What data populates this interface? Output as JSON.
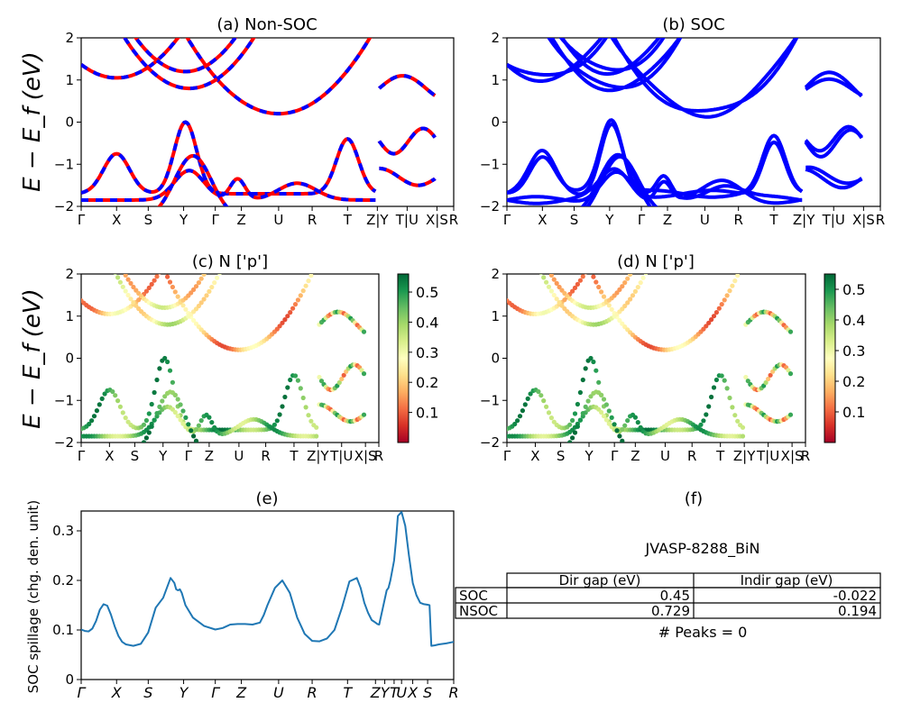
{
  "figure": {
    "material": "JVASP-8288_BiN",
    "kpath_labels": [
      "Γ",
      "X",
      "S",
      "Y",
      "Γ",
      "Z",
      "U",
      "R",
      "T",
      "Z|Y",
      "T|U",
      "X|S",
      "R"
    ],
    "kpath_labels_italic": [
      "Γ",
      "X",
      "S",
      "Y",
      "Γ",
      "Z",
      "U",
      "R",
      "T",
      "Z",
      "Y",
      "T",
      "U",
      "X",
      "S",
      "R"
    ],
    "band_ylabel": "E − E_f (eV)"
  },
  "chart_data": [
    {
      "id": "a",
      "type": "line",
      "title": "(a) Non-SOC",
      "ylabel": "E − E_f (eV)",
      "ylim": [
        -2,
        2
      ],
      "yticks": [
        -2,
        -1,
        0,
        1,
        2
      ],
      "x_ticks": [
        "Γ",
        "X",
        "S",
        "Y",
        "Γ",
        "Z",
        "U",
        "R",
        "T",
        "Z|Y",
        "T|U",
        "X|S",
        "R"
      ],
      "series_colors": [
        "#ff0000",
        "#0000ff"
      ],
      "legend": "none",
      "notes": "red solid and blue dashed bands overlap"
    },
    {
      "id": "b",
      "type": "line",
      "title": "(b) SOC",
      "ylim": [
        -2,
        2
      ],
      "yticks": [
        -2,
        -1,
        0,
        1,
        2
      ],
      "x_ticks": [
        "Γ",
        "X",
        "S",
        "Y",
        "Γ",
        "Z",
        "U",
        "R",
        "T",
        "Z|Y",
        "T|U",
        "X|S",
        "R"
      ],
      "series_colors": [
        "#0000ff"
      ]
    },
    {
      "id": "c",
      "type": "scatter",
      "title": "(c)  N ['p']",
      "ylabel": "E − E_f (eV)",
      "ylim": [
        -2,
        2
      ],
      "yticks": [
        -2,
        -1,
        0,
        1,
        2
      ],
      "x_ticks": [
        "Γ",
        "X",
        "S",
        "Y",
        "Γ",
        "Z",
        "U",
        "R",
        "T",
        "Z|Y",
        "T|U",
        "X|S",
        "R"
      ],
      "colorbar": {
        "ticks": [
          0.1,
          0.2,
          0.3,
          0.4,
          0.5
        ],
        "range": [
          0.0,
          0.56
        ],
        "cmap": "RdYlGn"
      }
    },
    {
      "id": "d",
      "type": "scatter",
      "title": "(d) N ['p']",
      "ylim": [
        -2,
        2
      ],
      "yticks": [
        -2,
        -1,
        0,
        1,
        2
      ],
      "x_ticks": [
        "Γ",
        "X",
        "S",
        "Y",
        "Γ",
        "Z",
        "U",
        "R",
        "T",
        "Z|Y",
        "T|U",
        "X|S",
        "R"
      ],
      "colorbar": {
        "ticks": [
          0.1,
          0.2,
          0.3,
          0.4,
          0.5
        ],
        "range": [
          0.0,
          0.55
        ],
        "cmap": "RdYlGn"
      }
    },
    {
      "id": "e",
      "type": "line",
      "title": "(e)",
      "ylabel": "SOC spillage (chg. den. unit)",
      "ylim": [
        0.0,
        0.34
      ],
      "yticks": [
        0.0,
        0.1,
        0.2,
        0.3
      ],
      "x_ticks": [
        "Γ",
        "X",
        "S",
        "Y",
        "Γ",
        "Z",
        "U",
        "R",
        "T",
        "Z",
        "Y",
        "T",
        "U",
        "X",
        "S",
        "R"
      ],
      "color": "#1f77b4",
      "x": [
        0,
        0.01,
        0.02,
        0.03,
        0.04,
        0.05,
        0.06,
        0.07,
        0.08,
        0.09,
        0.1,
        0.11,
        0.12,
        0.14,
        0.16,
        0.18,
        0.2,
        0.22,
        0.24,
        0.25,
        0.255,
        0.26,
        0.265,
        0.27,
        0.28,
        0.3,
        0.33,
        0.36,
        0.38,
        0.4,
        0.42,
        0.44,
        0.46,
        0.48,
        0.49,
        0.5,
        0.52,
        0.54,
        0.56,
        0.58,
        0.6,
        0.62,
        0.64,
        0.66,
        0.68,
        0.7,
        0.72,
        0.74,
        0.75,
        0.76,
        0.77,
        0.78,
        0.79,
        0.795,
        0.8,
        0.82,
        0.825,
        0.83,
        0.84,
        0.845,
        0.85,
        0.86,
        0.87,
        0.88,
        0.89,
        0.9,
        0.91,
        0.92,
        0.93,
        0.935,
        0.94,
        0.95,
        0.96,
        0.98,
        1.0
      ],
      "values": [
        0.101,
        0.098,
        0.097,
        0.103,
        0.118,
        0.141,
        0.152,
        0.149,
        0.131,
        0.107,
        0.088,
        0.076,
        0.071,
        0.068,
        0.072,
        0.095,
        0.145,
        0.165,
        0.205,
        0.195,
        0.182,
        0.18,
        0.182,
        0.175,
        0.15,
        0.125,
        0.108,
        0.101,
        0.104,
        0.111,
        0.112,
        0.112,
        0.111,
        0.115,
        0.13,
        0.15,
        0.185,
        0.2,
        0.175,
        0.125,
        0.092,
        0.078,
        0.077,
        0.083,
        0.1,
        0.145,
        0.198,
        0.205,
        0.185,
        0.155,
        0.135,
        0.12,
        0.115,
        0.112,
        0.111,
        0.18,
        0.185,
        0.2,
        0.24,
        0.28,
        0.33,
        0.338,
        0.31,
        0.25,
        0.195,
        0.17,
        0.155,
        0.152,
        0.151,
        0.15,
        0.068,
        0.069,
        0.071,
        0.073,
        0.076
      ]
    },
    {
      "id": "f",
      "type": "table",
      "title": "(f)",
      "caption": "JVASP-8288_BiN",
      "columns": [
        "Dir gap (eV)",
        "Indir gap (eV)"
      ],
      "rows": [
        {
          "label": "SOC",
          "values": [
            "0.45",
            "-0.022"
          ]
        },
        {
          "label": "NSOC",
          "values": [
            "0.729",
            "0.194"
          ]
        }
      ],
      "footer": "# Peaks = 0"
    }
  ]
}
